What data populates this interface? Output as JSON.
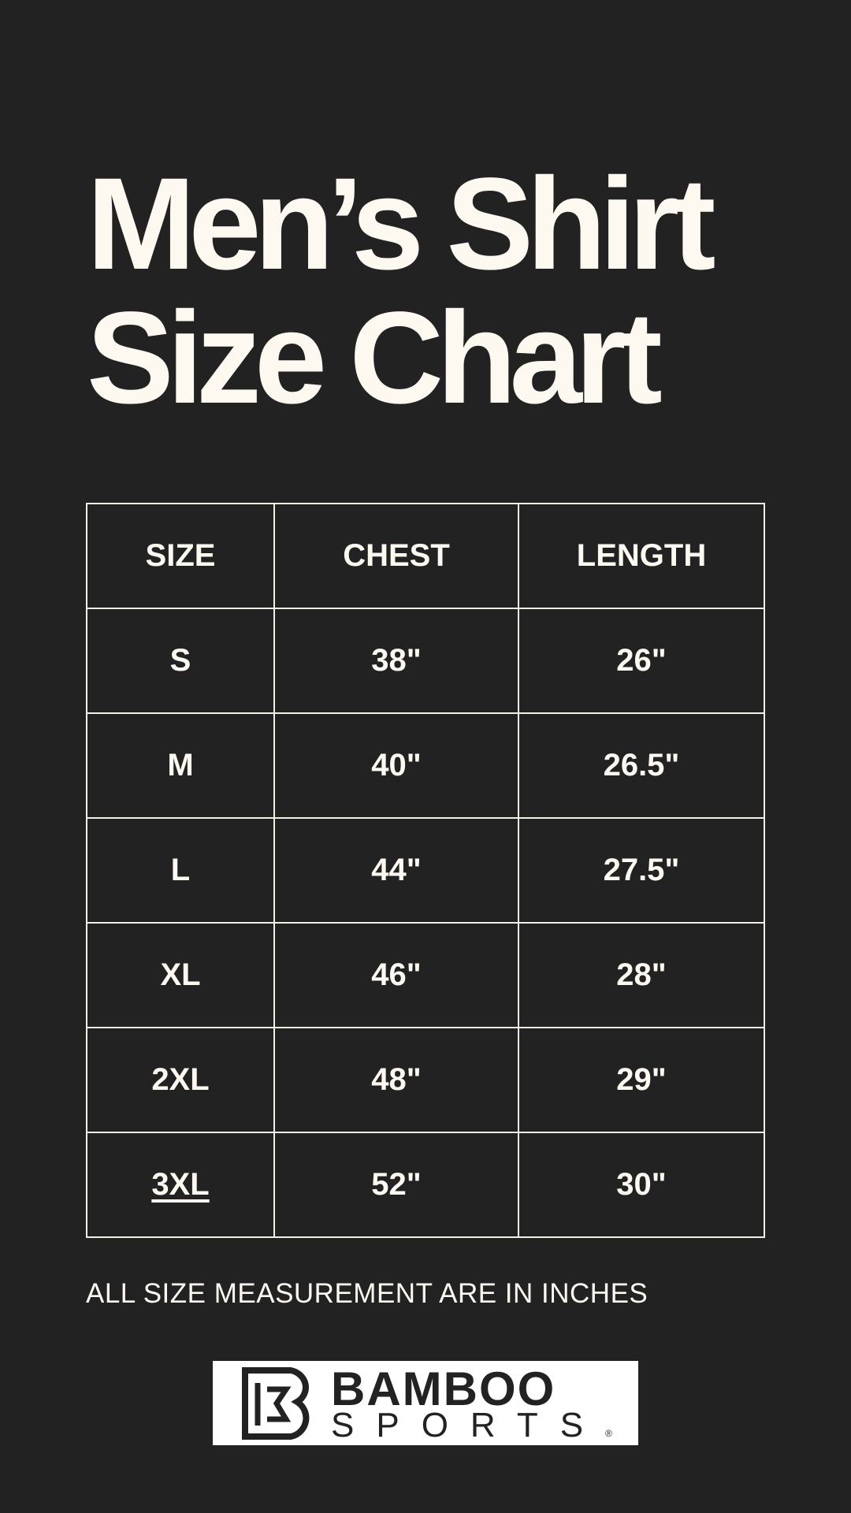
{
  "title": {
    "line1": "Men’s Shirt",
    "line2": "Size Chart"
  },
  "table": {
    "headers": [
      "SIZE",
      "CHEST",
      "LENGTH"
    ],
    "rows": [
      [
        "S",
        "38\"",
        "26\""
      ],
      [
        "M",
        "40\"",
        "26.5\""
      ],
      [
        "L",
        "44\"",
        "27.5\""
      ],
      [
        "XL",
        "46\"",
        "28\""
      ],
      [
        "2XL",
        "48\"",
        "29\""
      ],
      [
        "3XL",
        "52\"",
        "30\""
      ]
    ]
  },
  "note": "ALL SIZE MEASUREMENT ARE IN INCHES",
  "logo": {
    "line1": "BAMBOO",
    "line2": "SPORTS",
    "registered": "®"
  },
  "colors": {
    "background": "#222222",
    "text": "#fdf9f1"
  }
}
